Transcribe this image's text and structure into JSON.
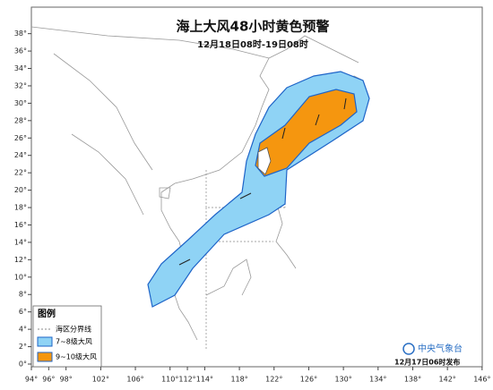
{
  "title": "海上大风48小时黄色预警",
  "subtitle": "12月18日08时-19日08时",
  "lon_ticks": [
    {
      "value": 94,
      "label": "94°"
    },
    {
      "value": 96,
      "label": "96°"
    },
    {
      "value": 98,
      "label": "98°"
    },
    {
      "value": 102,
      "label": "102°"
    },
    {
      "value": 106,
      "label": "106°"
    },
    {
      "value": 110,
      "label": "110°"
    },
    {
      "value": 112,
      "label": "112°"
    },
    {
      "value": 114,
      "label": "114°"
    },
    {
      "value": 118,
      "label": "118°"
    },
    {
      "value": 122,
      "label": "122°"
    },
    {
      "value": 126,
      "label": "126°"
    },
    {
      "value": 130,
      "label": "130°"
    },
    {
      "value": 134,
      "label": "134°"
    },
    {
      "value": 138,
      "label": "138°"
    },
    {
      "value": 142,
      "label": "142°"
    },
    {
      "value": 146,
      "label": "146°"
    }
  ],
  "lat_ticks": [
    {
      "value": 0,
      "label": "0°"
    },
    {
      "value": 2,
      "label": "2°"
    },
    {
      "value": 4,
      "label": "4°"
    },
    {
      "value": 6,
      "label": "6°"
    },
    {
      "value": 8,
      "label": "8°"
    },
    {
      "value": 10,
      "label": "10°"
    },
    {
      "value": 12,
      "label": "12°"
    },
    {
      "value": 14,
      "label": "14°"
    },
    {
      "value": 16,
      "label": "16°"
    },
    {
      "value": 18,
      "label": "18°"
    },
    {
      "value": 20,
      "label": "20°"
    },
    {
      "value": 22,
      "label": "22°"
    },
    {
      "value": 24,
      "label": "24°"
    },
    {
      "value": 26,
      "label": "26°"
    },
    {
      "value": 28,
      "label": "28°"
    },
    {
      "value": 30,
      "label": "30°"
    },
    {
      "value": 32,
      "label": "32°"
    },
    {
      "value": 34,
      "label": "34°"
    },
    {
      "value": 36,
      "label": "36°"
    },
    {
      "value": 38,
      "label": "38°"
    }
  ],
  "legend": {
    "title": "图例",
    "items": [
      "海区分界线",
      "7~8级大风",
      "9~10级大风"
    ]
  },
  "logo": "中央气象台",
  "issued": "12月17日06时发布"
}
